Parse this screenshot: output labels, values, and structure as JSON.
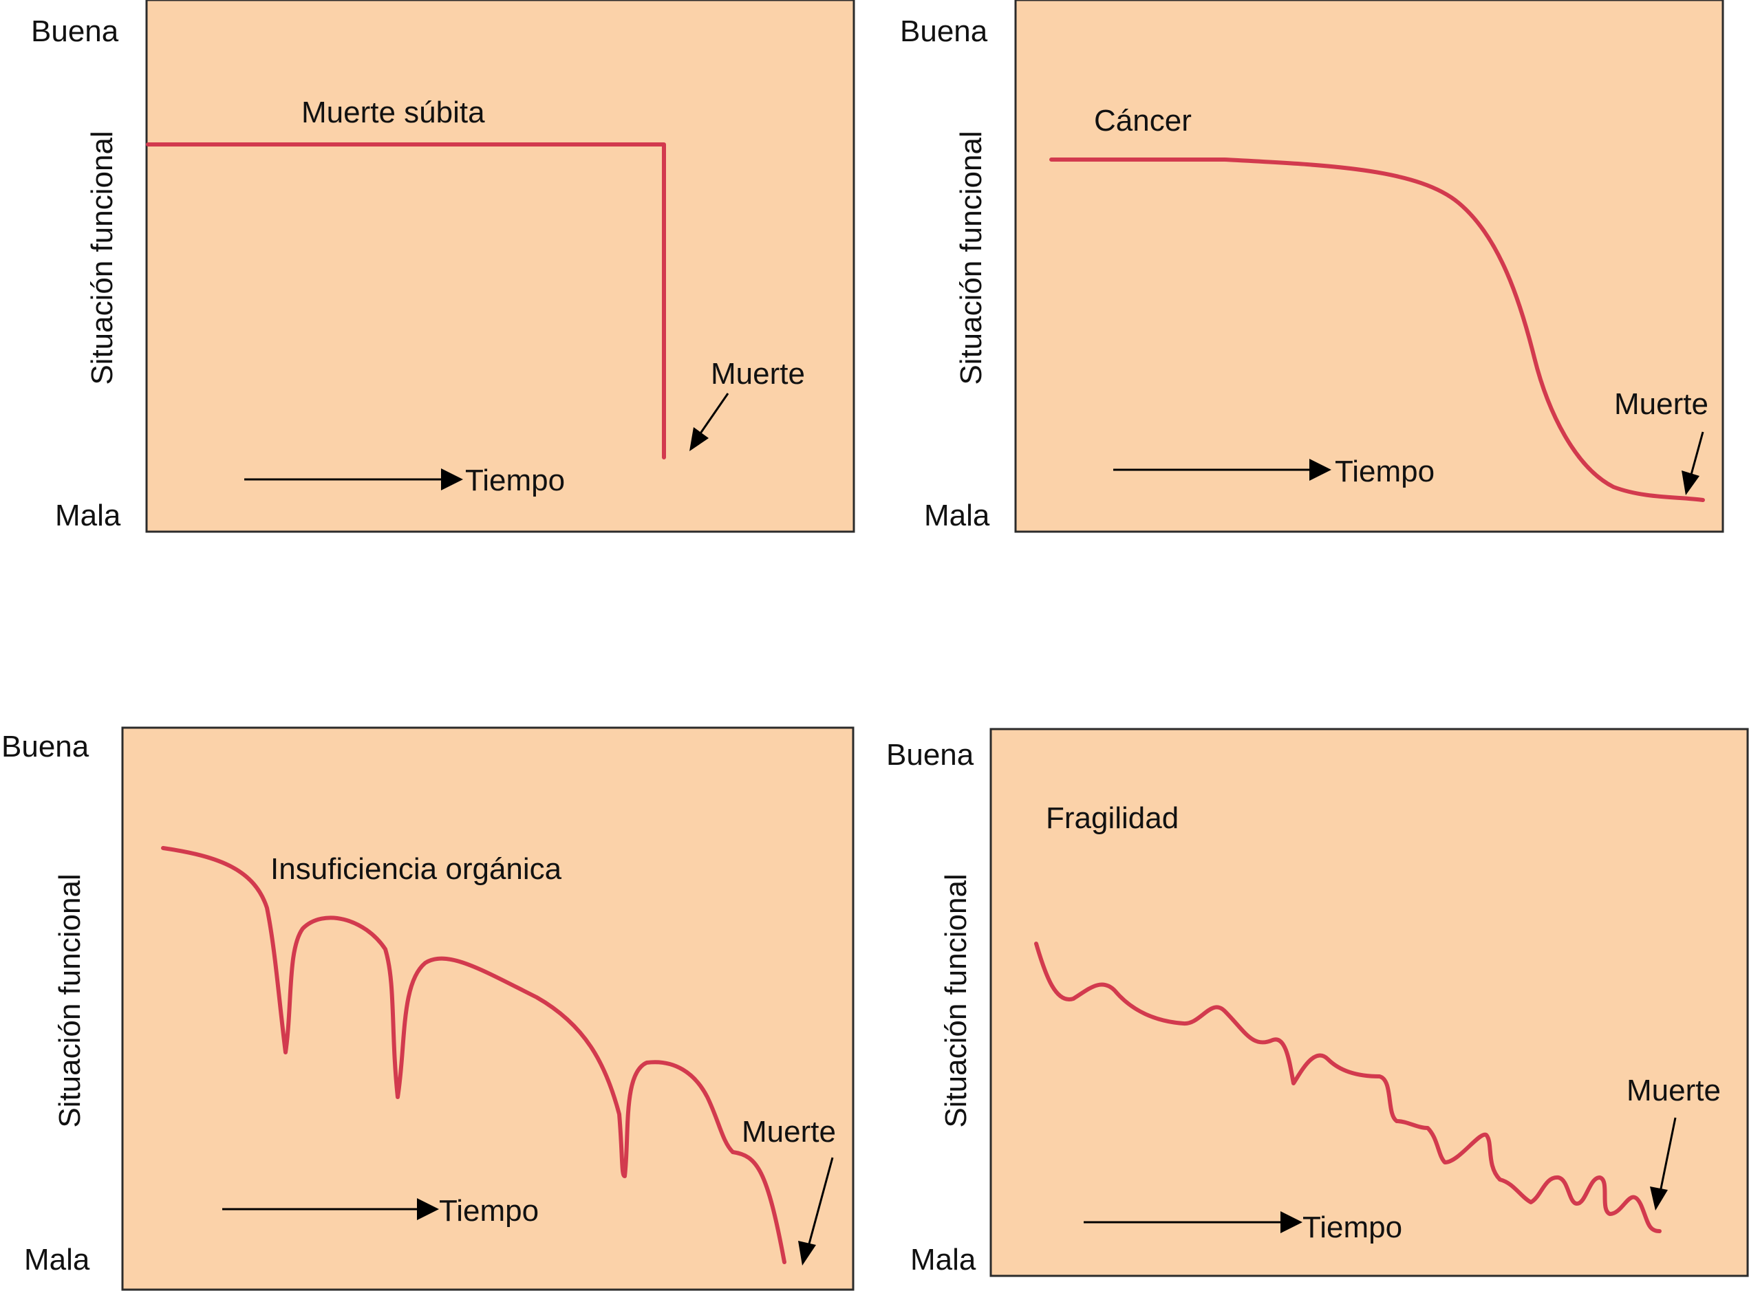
{
  "panels": [
    {
      "id": "muerte-subita",
      "top_label": "Buena",
      "bottom_label": "Mala",
      "axis_label": "Situación funcional",
      "curve_label": "Muerte súbita",
      "time_label": "Tiempo",
      "death_label": "Muerte"
    },
    {
      "id": "cancer",
      "top_label": "Buena",
      "bottom_label": "Mala",
      "axis_label": "Situación funcional",
      "curve_label": "Cáncer",
      "time_label": "Tiempo",
      "death_label": "Muerte"
    },
    {
      "id": "insuficiencia-organica",
      "top_label": "Buena",
      "bottom_label": "Mala",
      "axis_label": "Situación funcional",
      "curve_label": "Insuficiencia orgánica",
      "time_label": "Tiempo",
      "death_label": "Muerte"
    },
    {
      "id": "fragilidad",
      "top_label": "Buena",
      "bottom_label": "Mala",
      "axis_label": "Situación funcional",
      "curve_label": "Fragilidad",
      "time_label": "Tiempo",
      "death_label": "Muerte"
    }
  ],
  "colors": {
    "panel_fill": "#fbd2a9",
    "curve": "#d23a4e",
    "border": "#2b2b2b"
  }
}
